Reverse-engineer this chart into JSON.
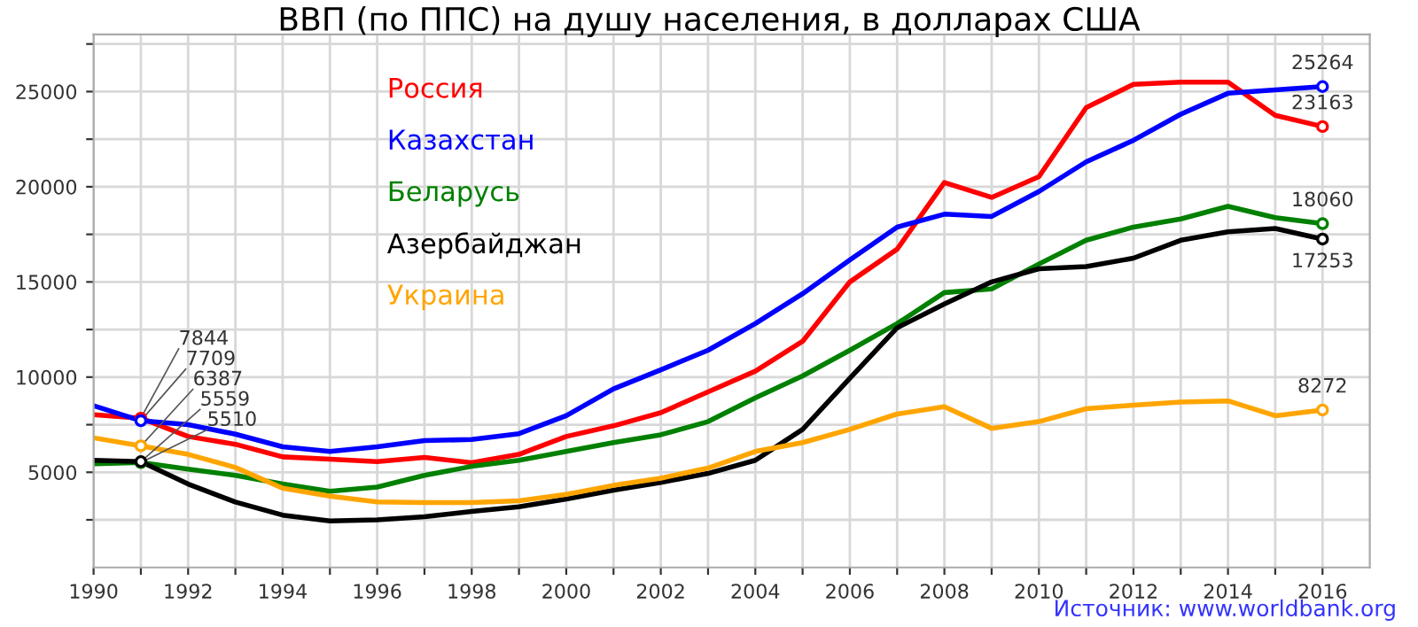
{
  "chart_data": {
    "type": "line",
    "title": "ВВП (по ППС) на душу населения, в долларах США",
    "x": [
      1990,
      1991,
      1992,
      1993,
      1994,
      1995,
      1996,
      1997,
      1998,
      1999,
      2000,
      2001,
      2002,
      2003,
      2004,
      2005,
      2006,
      2007,
      2008,
      2009,
      2010,
      2011,
      2012,
      2013,
      2014,
      2015,
      2016
    ],
    "series": [
      {
        "name": "Россия",
        "color": "#ff0000",
        "values": [
          8030,
          7844,
          6880,
          6470,
          5810,
          5690,
          5560,
          5780,
          5500,
          5940,
          6880,
          7440,
          8130,
          9220,
          10310,
          11880,
          15000,
          16720,
          20220,
          19440,
          20530,
          24160,
          25380,
          25500,
          25500,
          23750,
          23163
        ],
        "value_labels": [
          null,
          "7844",
          null,
          null,
          null,
          null,
          null,
          null,
          null,
          null,
          null,
          null,
          null,
          null,
          null,
          null,
          null,
          null,
          null,
          null,
          null,
          null,
          null,
          null,
          null,
          null,
          "23163"
        ]
      },
      {
        "name": "Казахстан",
        "color": "#0000ff",
        "values": [
          8500,
          7709,
          7500,
          7000,
          6340,
          6090,
          6340,
          6660,
          6720,
          7030,
          7970,
          9380,
          10380,
          11410,
          12810,
          14380,
          16160,
          17880,
          18560,
          18440,
          19750,
          21310,
          22440,
          23810,
          24910,
          25090,
          25264
        ],
        "value_labels": [
          null,
          "7709",
          null,
          null,
          null,
          null,
          null,
          null,
          null,
          null,
          null,
          null,
          null,
          null,
          null,
          null,
          null,
          null,
          null,
          null,
          null,
          null,
          null,
          null,
          null,
          null,
          "25264"
        ]
      },
      {
        "name": "Беларусь",
        "color": "#008000",
        "values": [
          5440,
          5510,
          5160,
          4840,
          4380,
          4000,
          4220,
          4840,
          5310,
          5630,
          6090,
          6560,
          6970,
          7660,
          8910,
          10060,
          11410,
          12810,
          14440,
          14630,
          15940,
          17190,
          17880,
          18310,
          18970,
          18380,
          18060
        ],
        "value_labels": [
          null,
          "5510",
          null,
          null,
          null,
          null,
          null,
          null,
          null,
          null,
          null,
          null,
          null,
          null,
          null,
          null,
          null,
          null,
          null,
          null,
          null,
          null,
          null,
          null,
          null,
          null,
          "18060"
        ]
      },
      {
        "name": "Азербайджан",
        "color": "#000000",
        "values": [
          5630,
          5559,
          4380,
          3440,
          2750,
          2440,
          2500,
          2660,
          2940,
          3190,
          3590,
          4060,
          4470,
          4940,
          5630,
          7250,
          9940,
          12590,
          13840,
          15000,
          15690,
          15810,
          16250,
          17190,
          17630,
          17810,
          17253
        ],
        "value_labels": [
          null,
          "5559",
          null,
          null,
          null,
          null,
          null,
          null,
          null,
          null,
          null,
          null,
          null,
          null,
          null,
          null,
          null,
          null,
          null,
          null,
          null,
          null,
          null,
          null,
          null,
          null,
          "17253"
        ]
      },
      {
        "name": "Украина",
        "color": "#ffa500",
        "values": [
          6810,
          6387,
          5940,
          5250,
          4160,
          3750,
          3440,
          3410,
          3410,
          3500,
          3840,
          4310,
          4690,
          5220,
          6090,
          6560,
          7250,
          8060,
          8440,
          7310,
          7660,
          8340,
          8530,
          8690,
          8750,
          7970,
          8272
        ],
        "value_labels": [
          null,
          "6387",
          null,
          null,
          null,
          null,
          null,
          null,
          null,
          null,
          null,
          null,
          null,
          null,
          null,
          null,
          null,
          null,
          null,
          null,
          null,
          null,
          null,
          null,
          null,
          null,
          "8272"
        ]
      }
    ],
    "xlim": [
      1990,
      2017
    ],
    "xticks": [
      1990,
      {
        "value": 1991,
        "label": null
      },
      1992,
      {
        "value": 1993,
        "label": null
      },
      1994,
      {
        "value": 1995,
        "label": null
      },
      1996,
      {
        "value": 1997,
        "label": null
      },
      1998,
      {
        "value": 1999,
        "label": null
      },
      2000,
      {
        "value": 2001,
        "label": null
      },
      2002,
      {
        "value": 2003,
        "label": null
      },
      2004,
      {
        "value": 2005,
        "label": null
      },
      2006,
      {
        "value": 2007,
        "label": null
      },
      2008,
      {
        "value": 2009,
        "label": null
      },
      2010,
      {
        "value": 2011,
        "label": null
      },
      2012,
      {
        "value": 2013,
        "label": null
      },
      2014,
      {
        "value": 2015,
        "label": null
      },
      2016
    ],
    "ylim": [
      0,
      28000
    ],
    "yticks": [
      {
        "value": 2500,
        "label": null
      },
      5000,
      {
        "value": 7500,
        "label": null
      },
      10000,
      {
        "value": 12500,
        "label": null
      },
      15000,
      {
        "value": 17500,
        "label": null
      },
      20000,
      {
        "value": 22500,
        "label": null
      },
      25000,
      {
        "value": 27500,
        "label": null
      }
    ],
    "grid": true,
    "legend": "top left",
    "annotations": [
      "Источник: www.worldbank.org"
    ]
  }
}
